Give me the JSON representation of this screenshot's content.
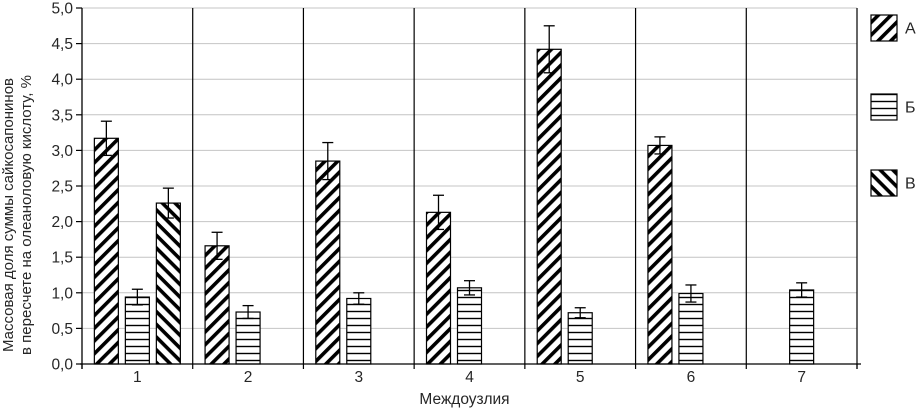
{
  "chart_data": {
    "type": "bar",
    "title": "",
    "xlabel": "Междоузлия",
    "ylabel_line1": "Массовая доля суммы сайкосапонинов",
    "ylabel_line2": "в пересчете на олеаноловую кислоту, %",
    "categories": [
      "1",
      "2",
      "3",
      "4",
      "5",
      "6",
      "7"
    ],
    "series": [
      {
        "name": "А",
        "pattern": "diagonal-up",
        "values": [
          3.17,
          1.66,
          2.85,
          2.13,
          4.42,
          3.07,
          null
        ],
        "errors": [
          0.24,
          0.19,
          0.26,
          0.24,
          0.33,
          0.12,
          null
        ]
      },
      {
        "name": "Б",
        "pattern": "horizontal",
        "values": [
          0.94,
          0.73,
          0.92,
          1.07,
          0.72,
          0.99,
          1.04
        ],
        "errors": [
          0.11,
          0.09,
          0.08,
          0.1,
          0.07,
          0.12,
          0.1
        ]
      },
      {
        "name": "В",
        "pattern": "diagonal-down",
        "values": [
          2.26,
          null,
          null,
          null,
          null,
          null,
          null
        ],
        "errors": [
          0.21,
          null,
          null,
          null,
          null,
          null,
          null
        ]
      }
    ],
    "ylim": [
      0,
      5
    ],
    "ytick_step": 0.5,
    "ytick_labels": [
      "0,0",
      "0,5",
      "1,0",
      "1,5",
      "2,0",
      "2,5",
      "3,0",
      "3,5",
      "4,0",
      "4,5",
      "5,0"
    ],
    "grid": true,
    "error_bars": true,
    "legend_position": "right",
    "colors": {
      "bar_fill": "#ffffff",
      "bar_stroke": "#000000",
      "gridline": "#c4c4c4",
      "separator": "#000000",
      "axis": "#000000",
      "text": "#262626"
    }
  }
}
